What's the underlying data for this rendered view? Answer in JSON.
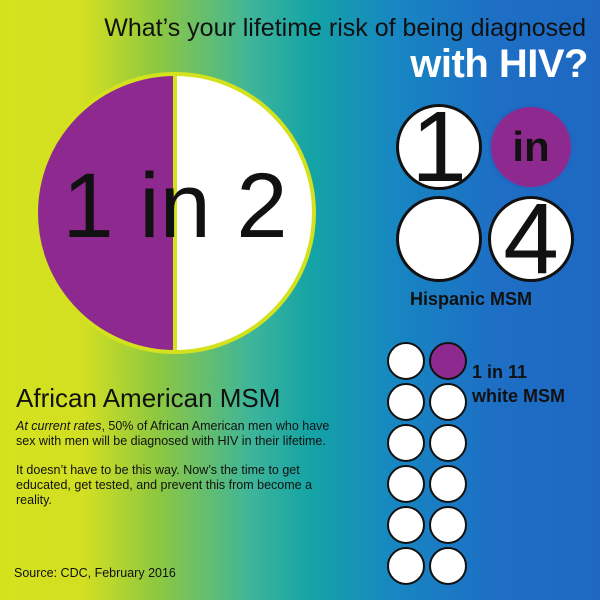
{
  "header": {
    "title_line1": "What’s your lifetime risk of being diagnosed",
    "title_line2": "with HIV?"
  },
  "african_american": {
    "ratio_text": "1 in 2",
    "heading": "African American MSM",
    "body_italic": "At current rates",
    "body_rest": ", 50% of African American men who have sex with men will be diagnosed with HIV in their lifetime.",
    "body_para2": "It doesn’t have to be this way. Now’s the time to get educated, get tested, and prevent this from become a reality."
  },
  "hispanic": {
    "num1": "1",
    "in_label": "in",
    "num2": "4",
    "label": "Hispanic MSM"
  },
  "white": {
    "label_line1": "1 in 11",
    "label_line2": "white MSM"
  },
  "source": "Source: CDC, February 2016",
  "colors": {
    "purple": "#8e2a8f",
    "lime": "#d4e21e",
    "blue": "#1e68c2"
  }
}
